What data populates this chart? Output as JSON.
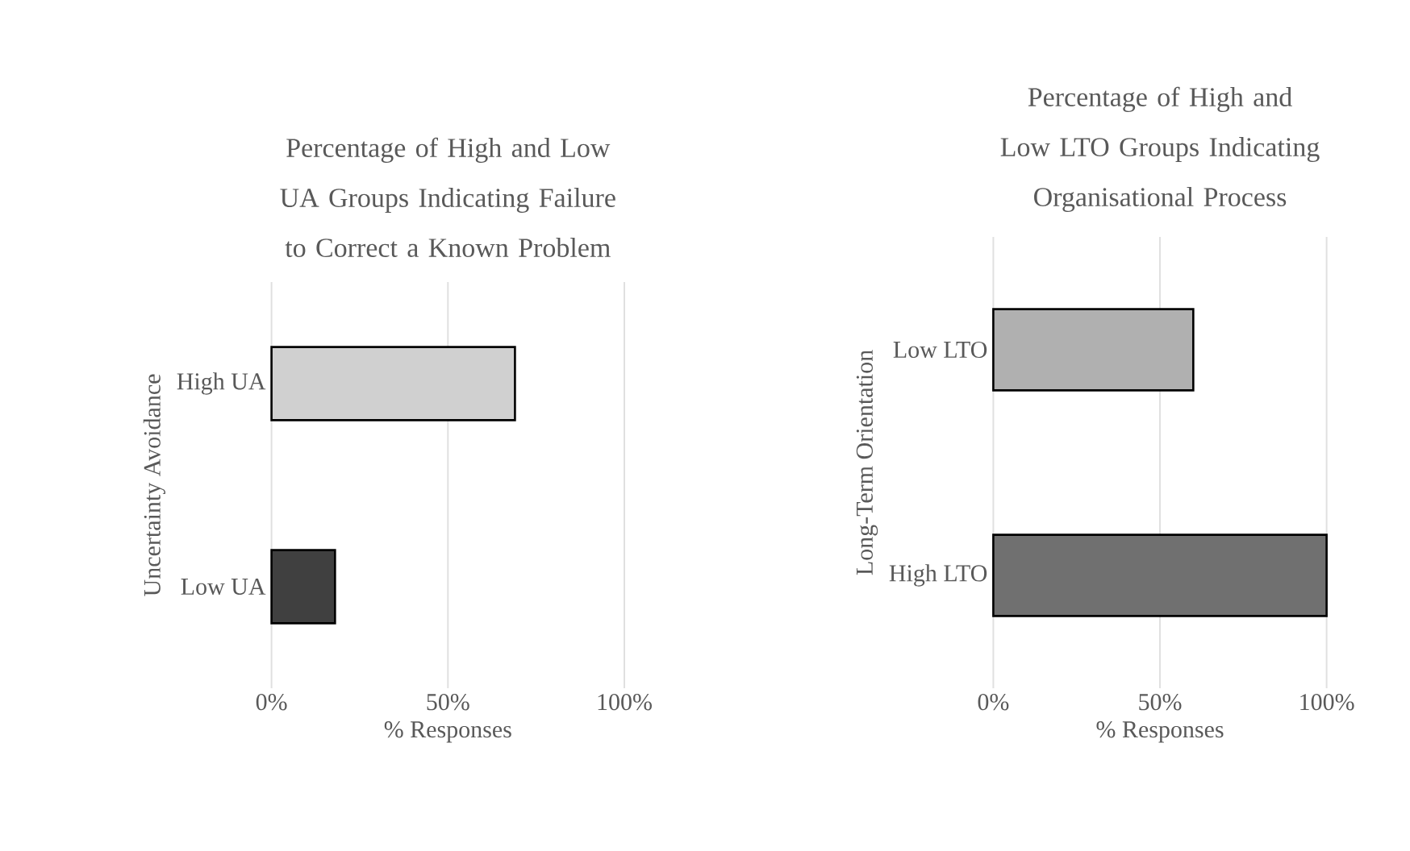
{
  "chart_data": [
    {
      "type": "bar",
      "orientation": "horizontal",
      "title": "Percentage of High and Low UA Groups Indicating Failure to Correct a Known Problem",
      "xlabel": "% Responses",
      "ylabel": "Uncertainty Avoidance",
      "categories": [
        "High UA",
        "Low UA"
      ],
      "values": [
        69,
        18
      ],
      "colors": [
        "#d0d0d0",
        "#404040"
      ],
      "xlim": [
        0,
        100
      ],
      "xticks": [
        {
          "value": 0,
          "label": "0%"
        },
        {
          "value": 50,
          "label": "50%"
        },
        {
          "value": 100,
          "label": "100%"
        }
      ],
      "grid": "x"
    },
    {
      "type": "bar",
      "orientation": "horizontal",
      "title": "Percentage of High and Low LTO Groups Indicating Organisational Process",
      "xlabel": "% Responses",
      "ylabel": "Long-Term Orientation",
      "categories": [
        "Low LTO",
        "High LTO"
      ],
      "values": [
        60,
        100
      ],
      "colors": [
        "#b0b0b0",
        "#707070"
      ],
      "xlim": [
        0,
        100
      ],
      "xticks": [
        {
          "value": 0,
          "label": "0%"
        },
        {
          "value": 50,
          "label": "50%"
        },
        {
          "value": 100,
          "label": "100%"
        }
      ],
      "grid": "x"
    }
  ]
}
